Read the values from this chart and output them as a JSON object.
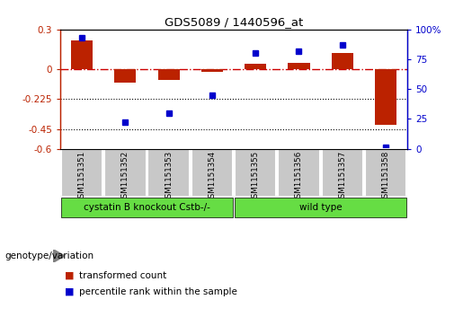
{
  "title": "GDS5089 / 1440596_at",
  "samples": [
    "GSM1151351",
    "GSM1151352",
    "GSM1151353",
    "GSM1151354",
    "GSM1151355",
    "GSM1151356",
    "GSM1151357",
    "GSM1151358"
  ],
  "red_values": [
    0.22,
    -0.1,
    -0.08,
    -0.02,
    0.04,
    0.05,
    0.12,
    -0.42
  ],
  "blue_values_pct": [
    93,
    22,
    30,
    45,
    80,
    82,
    87,
    1
  ],
  "ylim_left": [
    -0.6,
    0.3
  ],
  "ylim_right": [
    0,
    100
  ],
  "yticks_left": [
    -0.6,
    -0.45,
    -0.225,
    0.0,
    0.3
  ],
  "ytick_labels_left": [
    "-0.6",
    "-0.45",
    "-0.225",
    "0",
    "0.3"
  ],
  "yticks_right": [
    0,
    25,
    50,
    75,
    100
  ],
  "ytick_labels_right": [
    "0",
    "25",
    "50",
    "75",
    "100%"
  ],
  "hlines_dotted": [
    -0.225,
    -0.45
  ],
  "zero_line": 0.0,
  "group1_label": "cystatin B knockout Cstb-/-",
  "group2_label": "wild type",
  "group1_samples": 4,
  "group2_samples": 4,
  "group_label": "genotype/variation",
  "legend_red": "transformed count",
  "legend_blue": "percentile rank within the sample",
  "bar_width": 0.5,
  "red_color": "#bb2200",
  "blue_color": "#0000cc",
  "zero_line_color": "#cc0000",
  "green_color": "#66dd44",
  "background_xtick": "#c8c8c8"
}
